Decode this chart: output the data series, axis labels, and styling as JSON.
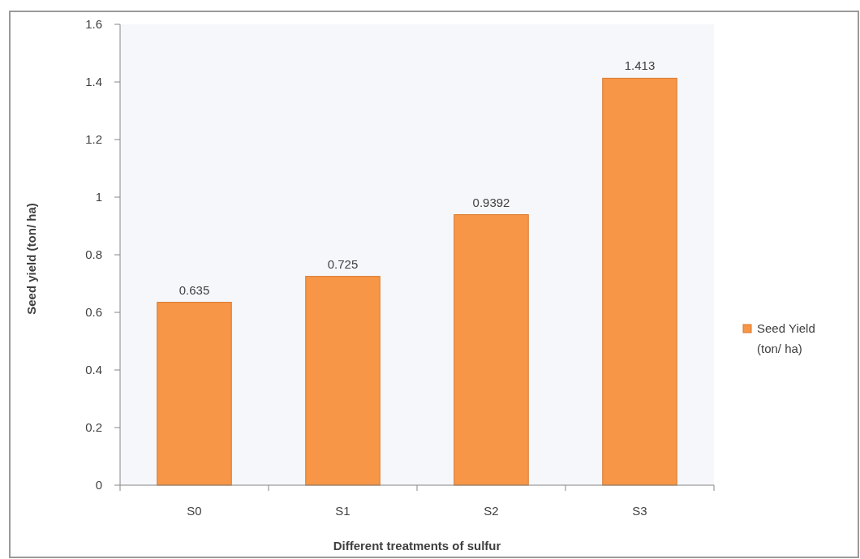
{
  "chart_data": {
    "type": "bar",
    "xlabel": "Different treatments of sulfur",
    "ylabel": "Seed yield (ton/ ha)",
    "categories": [
      "S0",
      "S1",
      "S2",
      "S3"
    ],
    "series": [
      {
        "name": "Seed Yield (ton/ ha)",
        "color": "#f79646",
        "values": [
          0.635,
          0.725,
          0.9392,
          1.413
        ]
      }
    ],
    "ylim": [
      0,
      1.6
    ],
    "yticks": [
      0,
      0.2,
      0.4,
      0.6,
      0.8,
      1,
      1.2,
      1.4,
      1.6
    ],
    "data_labels": true,
    "legend": "right"
  }
}
